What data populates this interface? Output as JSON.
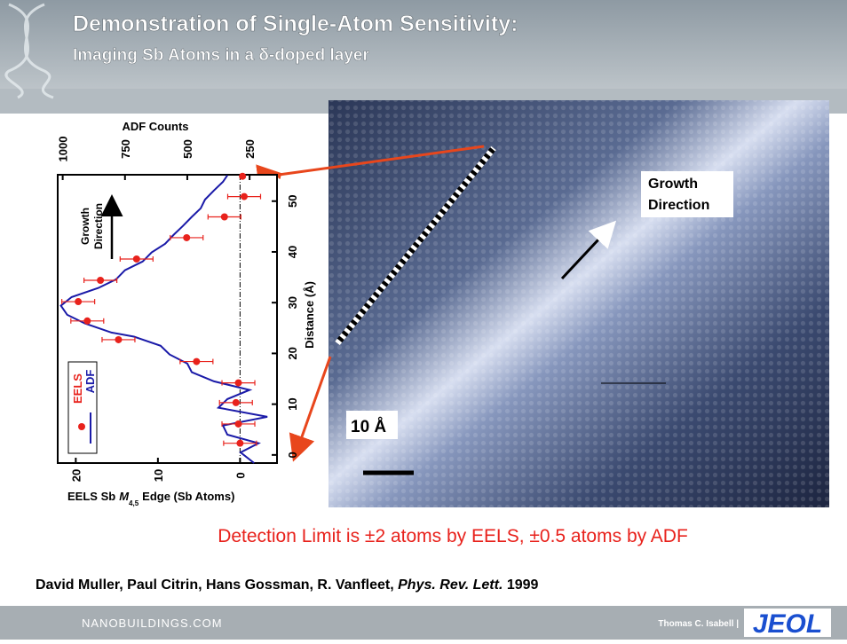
{
  "header": {
    "title": "Demonstration of Single-Atom Sensitivity:",
    "subtitle": "Imaging Sb Atoms in a δ-doped layer"
  },
  "chart": {
    "type": "line",
    "top_axis_label": "ADF Counts",
    "distance_label": "Distance (Å)",
    "eels_label_prefix": "EELS Sb",
    "eels_label_symbol": "M",
    "eels_label_subscript": "4,5",
    "eels_label_suffix": "Edge (Sb Atoms)",
    "annotation": [
      "Growth",
      "Direction"
    ],
    "distance_lim": [
      -1.6,
      55.2
    ],
    "distance_ticks": [
      0,
      10,
      20,
      30,
      40,
      50
    ],
    "eels_lim": [
      22.2,
      -4.5
    ],
    "eels_ticks": [
      20,
      10,
      0
    ],
    "adf_lim": [
      1020,
      140
    ],
    "adf_ticks": [
      1000,
      750,
      500,
      250
    ],
    "eels": {
      "name": "EELS",
      "color": "#e8221c",
      "distance": [
        54.9,
        50.9,
        46.9,
        42.8,
        38.6,
        34.4,
        30.2,
        26.4,
        22.7,
        18.4,
        14.2,
        10.3,
        6.1,
        2.3
      ],
      "values": [
        -0.3,
        -0.5,
        1.9,
        6.5,
        12.6,
        17.0,
        19.7,
        18.6,
        14.8,
        5.3,
        0.2,
        0.5,
        0.2,
        0
      ],
      "errors": [
        0,
        2,
        2,
        2,
        2,
        2,
        2,
        2,
        2,
        2,
        2,
        2,
        2,
        2
      ]
    },
    "adf": {
      "name": "ADF",
      "color": "#1a1aa8",
      "distance": [
        -1.6,
        0.5,
        2.3,
        4.0,
        5.8,
        7.5,
        9.3,
        11.0,
        12.8,
        14.5,
        16.3,
        18.0,
        19.8,
        21.5,
        23.3,
        24.1,
        25.9,
        27.6,
        29.4,
        31.1,
        32.9,
        34.6,
        36.4,
        38.1,
        39.9,
        41.6,
        43.4,
        45.1,
        46.9,
        48.6,
        50.3,
        52.1,
        53.8,
        55.1
      ],
      "values": [
        232,
        286,
        214,
        339,
        357,
        179,
        375,
        339,
        250,
        393,
        482,
        500,
        571,
        607,
        714,
        804,
        911,
        982,
        1007,
        964,
        857,
        786,
        750,
        679,
        643,
        589,
        554,
        518,
        482,
        446,
        429,
        393,
        357,
        339
      ]
    }
  },
  "image": {
    "annotation": [
      "Growth",
      "Direction"
    ],
    "scale_label": "10 Å"
  },
  "caption": "Detection Limit is ±2 atoms by EELS, ±0.5 atoms by ADF",
  "citation": {
    "authors": "David Muller, Paul Citrin, Hans Gossman, R. Vanfleet,",
    "journal": "Phys. Rev. Lett.",
    "year": "1999"
  },
  "footer": {
    "site": "NANOBUILDINGS.COM",
    "author": "Thomas C. Isabell |",
    "logo": "JEOL"
  }
}
